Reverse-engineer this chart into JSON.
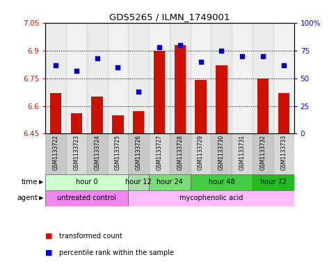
{
  "title": "GDS5265 / ILMN_1749001",
  "samples": [
    "GSM1133722",
    "GSM1133723",
    "GSM1133724",
    "GSM1133725",
    "GSM1133726",
    "GSM1133727",
    "GSM1133728",
    "GSM1133729",
    "GSM1133730",
    "GSM1133731",
    "GSM1133732",
    "GSM1133733"
  ],
  "transformed_count": [
    6.67,
    6.56,
    6.65,
    6.55,
    6.57,
    6.9,
    6.93,
    6.74,
    6.82,
    6.45,
    6.75,
    6.67
  ],
  "bar_bottom": 6.45,
  "percentile_rank": [
    62,
    57,
    68,
    60,
    38,
    78,
    80,
    65,
    75,
    70,
    70,
    62
  ],
  "ylim_left": [
    6.45,
    7.05
  ],
  "ylim_right": [
    0,
    100
  ],
  "yticks_left": [
    6.45,
    6.6,
    6.75,
    6.9,
    7.05
  ],
  "yticks_right": [
    0,
    25,
    50,
    75,
    100
  ],
  "ytick_labels_right": [
    "0",
    "25",
    "50",
    "75",
    "100%"
  ],
  "bar_color": "#cc1100",
  "dot_color": "#0000cc",
  "time_groups": [
    {
      "label": "hour 0",
      "indices": [
        0,
        1,
        2,
        3
      ],
      "color": "#ccffcc"
    },
    {
      "label": "hour 12",
      "indices": [
        4
      ],
      "color": "#aaddaa"
    },
    {
      "label": "hour 24",
      "indices": [
        5,
        6
      ],
      "color": "#77cc77"
    },
    {
      "label": "hour 48",
      "indices": [
        7,
        8,
        9
      ],
      "color": "#44bb44"
    },
    {
      "label": "hour 72",
      "indices": [
        10,
        11
      ],
      "color": "#22aa22"
    }
  ],
  "agent_groups": [
    {
      "label": "untreated control",
      "indices": [
        0,
        1,
        2,
        3
      ],
      "color": "#ee88ee"
    },
    {
      "label": "mycophenolic acid",
      "indices": [
        4,
        5,
        6,
        7,
        8,
        9,
        10,
        11
      ],
      "color": "#ffbbff"
    }
  ],
  "legend_items": [
    {
      "label": "transformed count",
      "color": "#cc1100"
    },
    {
      "label": "percentile rank within the sample",
      "color": "#0000cc"
    }
  ],
  "sample_bg_even": "#c8c8c8",
  "sample_bg_odd": "#d8d8d8"
}
